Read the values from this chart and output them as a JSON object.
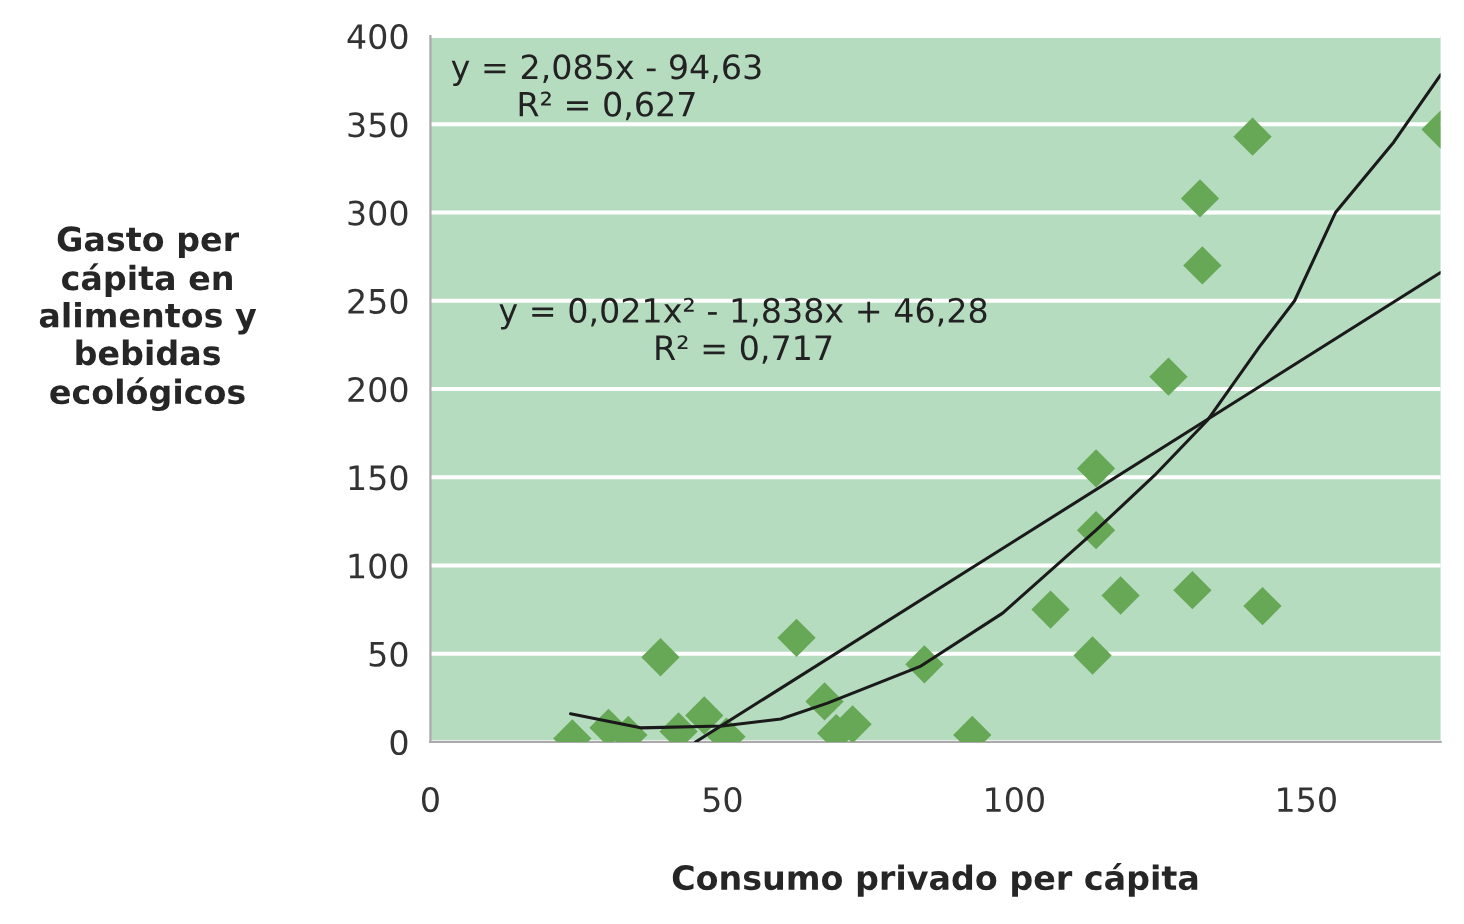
{
  "chart_data": {
    "type": "scatter",
    "xlabel": "Consumo privado per cápita",
    "ylabel": "Gasto per\ncápita en\nalimentos y\nbebidas\necológicos",
    "annotations": [
      "y = 2,085x - 94,63\nR² = 0,627",
      "y = 0,021x² - 1,838x + 46,28\nR² = 0,717"
    ],
    "series": [
      {
        "color": "#66a855",
        "marker": "diamond",
        "x": [
          24.3,
          30.5,
          33.9,
          39.4,
          42.5,
          46.9,
          50.7,
          62.7,
          67.5,
          69.5,
          72.3,
          84.6,
          92.8,
          106.2,
          113.4,
          114,
          114,
          118.2,
          126.4,
          130.5,
          131.8,
          132.2,
          140.8,
          142.5,
          173
        ],
        "values": [
          2,
          8,
          4,
          48,
          6,
          15,
          3,
          59,
          23,
          5,
          10,
          44,
          4,
          75,
          49,
          120,
          155,
          83,
          207,
          86,
          308,
          270,
          343,
          77,
          347
        ]
      },
      {
        "type": "line",
        "color": "#1a1a1a",
        "marker": "none",
        "x": [
          45.4,
          173
        ],
        "values": [
          0,
          266
        ]
      },
      {
        "type": "line",
        "color": "#1a1a1a",
        "marker": "none",
        "x": [
          24,
          36,
          50,
          60,
          68,
          84,
          98,
          114,
          124,
          133,
          142,
          148,
          155,
          165,
          173
        ],
        "values": [
          16,
          8,
          9,
          13,
          22,
          43,
          73,
          120,
          151,
          182,
          224,
          250,
          300,
          340,
          378
        ]
      }
    ],
    "xlim": [
      0,
      173
    ],
    "xticks": [
      0,
      50,
      100,
      150
    ],
    "ylim": [
      0,
      400
    ],
    "yticks": [
      0,
      50,
      100,
      150,
      200,
      250,
      300,
      350,
      400
    ],
    "grid": "y",
    "legend": false
  }
}
